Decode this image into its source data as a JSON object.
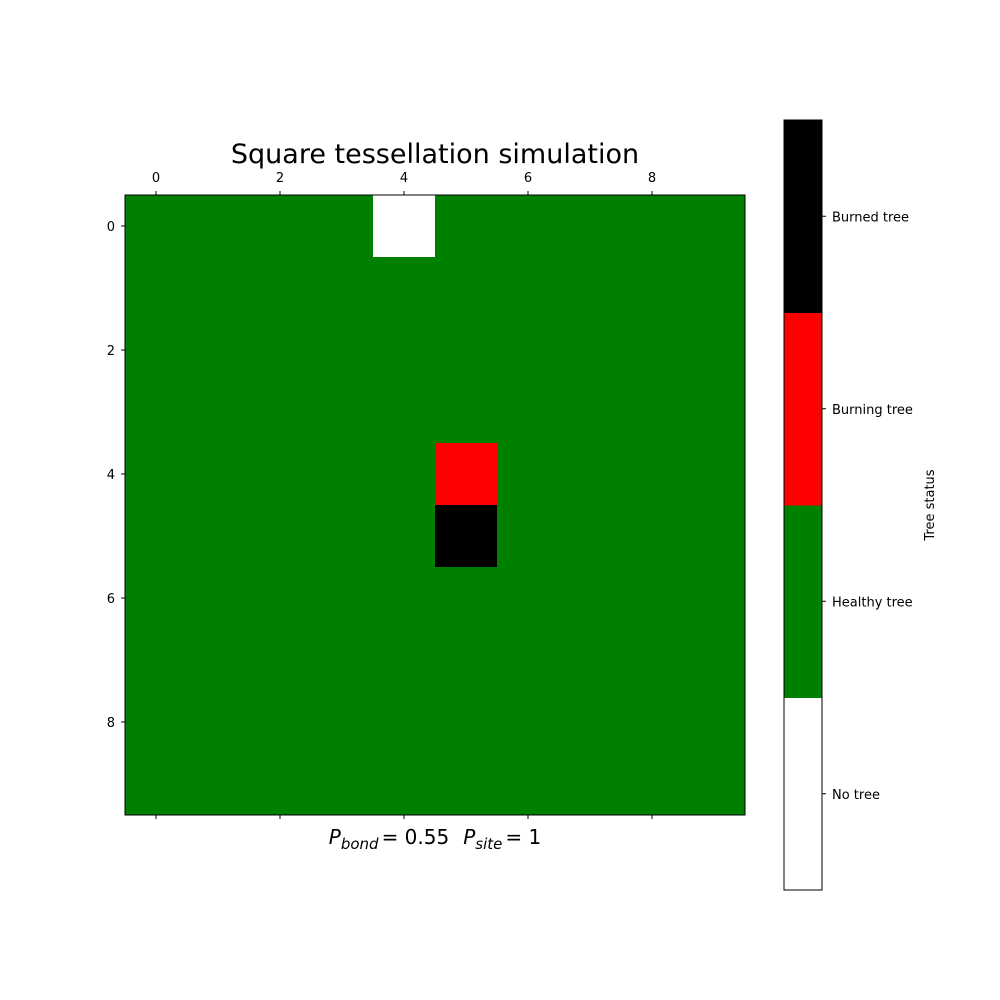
{
  "chart_data": {
    "type": "heatmap",
    "title": "Square tessellation simulation",
    "xlabel_parts": {
      "bond_symbol": "P",
      "bond_subscript": "bond",
      "bond_value": "= 0.55",
      "site_symbol": "P",
      "site_subscript": "site",
      "site_value": "= 1"
    },
    "rows": 10,
    "cols": 10,
    "xlim": [
      -0.5,
      9.5
    ],
    "ylim": [
      -0.5,
      9.5
    ],
    "x_ticks": [
      0,
      2,
      4,
      6,
      8
    ],
    "y_ticks": [
      0,
      2,
      4,
      6,
      8
    ],
    "x_tick_labels_position": "top",
    "background_value": 1,
    "cells": [
      {
        "row": 0,
        "col": 4,
        "value": 0
      },
      {
        "row": 4,
        "col": 5,
        "value": 2
      },
      {
        "row": 5,
        "col": 5,
        "value": 3
      }
    ],
    "colorbar": {
      "label": "Tree status",
      "categories": [
        {
          "value": 0,
          "name": "No tree",
          "color": "#ffffff"
        },
        {
          "value": 1,
          "name": "Healthy tree",
          "color": "#008000"
        },
        {
          "value": 2,
          "name": "Burning tree",
          "color": "#ff0000"
        },
        {
          "value": 3,
          "name": "Burned tree",
          "color": "#000000"
        }
      ]
    }
  }
}
